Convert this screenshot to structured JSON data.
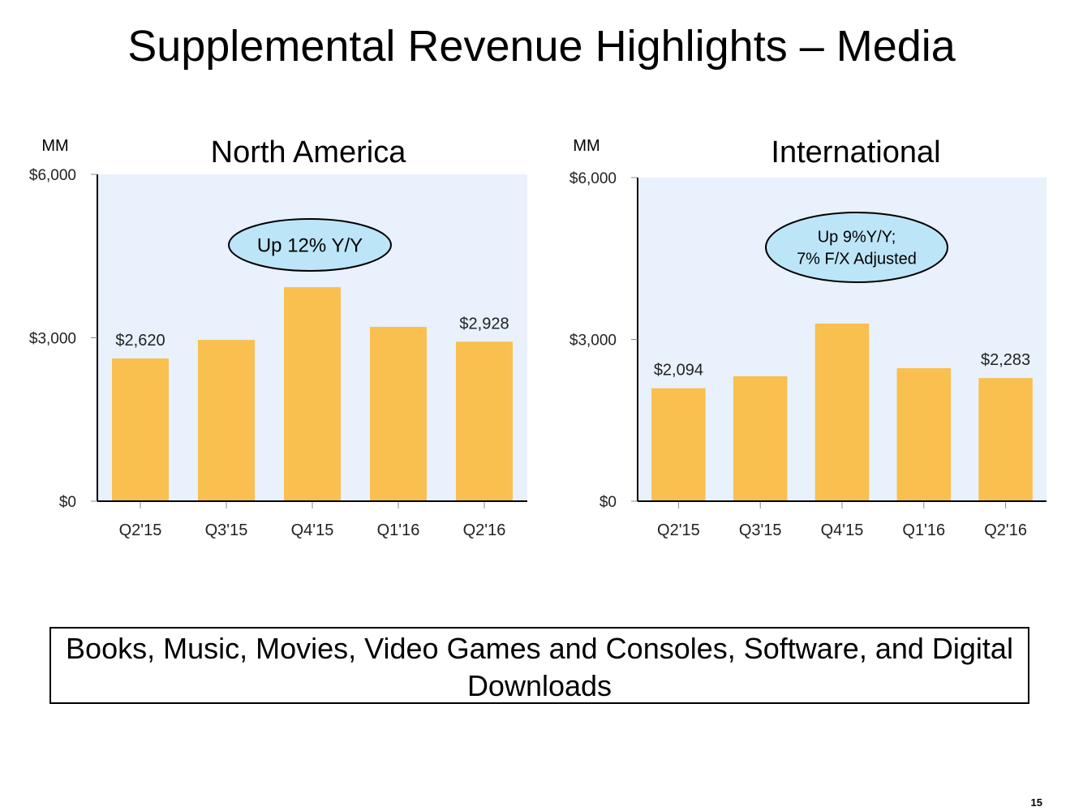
{
  "slide": {
    "title": "Supplemental Revenue Highlights – Media",
    "footer_text": "Books, Music, Movies, Video Games and Consoles, Software, and Digital Downloads",
    "page_number": "15"
  },
  "colors": {
    "bar": "#F9BF4F",
    "plot_bg": "#E8F1FC",
    "callout_fill": "#BDE5F8"
  },
  "chart_data": [
    {
      "type": "bar",
      "title": "North America",
      "unit_label": "MM",
      "categories": [
        "Q2'15",
        "Q3'15",
        "Q4'15",
        "Q1'16",
        "Q2'16"
      ],
      "values": [
        2620,
        2961,
        3929,
        3200,
        2928
      ],
      "data_labels": [
        "$2,620",
        "",
        "",
        "",
        "$2,928"
      ],
      "yticks": [
        0,
        3000,
        6000
      ],
      "ytick_labels": [
        "$0",
        "$3,000",
        "$6,000"
      ],
      "ylim": [
        0,
        6000
      ],
      "grid": false,
      "callout": [
        "Up 12% Y/Y"
      ]
    },
    {
      "type": "bar",
      "title": "International",
      "unit_label": "MM",
      "categories": [
        "Q2'15",
        "Q3'15",
        "Q4'15",
        "Q1'16",
        "Q2'16"
      ],
      "values": [
        2094,
        2316,
        3293,
        2466,
        2283
      ],
      "data_labels": [
        "$2,094",
        "",
        "",
        "",
        "$2,283"
      ],
      "yticks": [
        0,
        3000,
        6000
      ],
      "ytick_labels": [
        "$0",
        "$3,000",
        "$6,000"
      ],
      "ylim": [
        0,
        6000
      ],
      "grid": false,
      "callout": [
        "Up 9%Y/Y;",
        "7% F/X Adjusted"
      ]
    }
  ]
}
